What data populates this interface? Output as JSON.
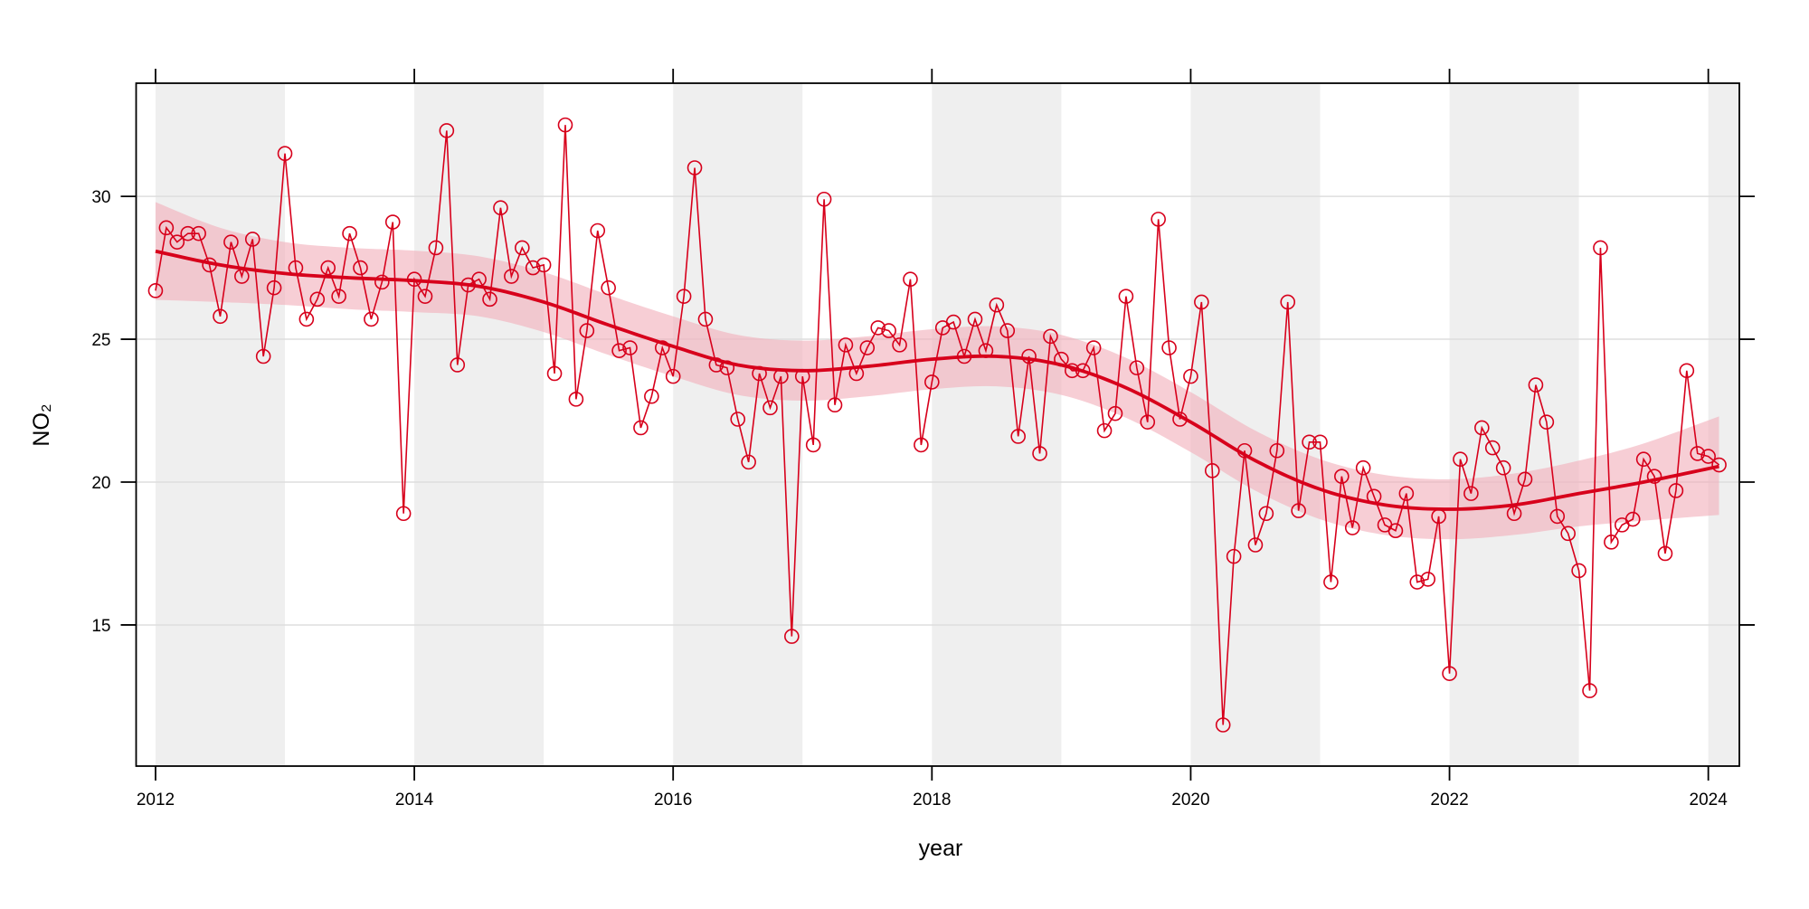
{
  "chart_data": {
    "type": "line",
    "xlabel": "year",
    "ylabel": "NO₂",
    "xlim": [
      2011.85,
      2024.24
    ],
    "ylim": [
      10.06,
      33.96
    ],
    "x_ticks": [
      2012,
      2014,
      2016,
      2018,
      2020,
      2022,
      2024
    ],
    "y_ticks": [
      15,
      20,
      25,
      30
    ],
    "grid": "horizontal",
    "alternate_year_shading": true,
    "colors": {
      "series": "#d7001b",
      "band": "#f2aeb9",
      "shade": "#efefef",
      "grid": "#dedede"
    },
    "series": [
      {
        "frequency": "monthly",
        "start": "2012-01",
        "marker": "open-circle",
        "values": [
          26.7,
          28.9,
          28.4,
          28.7,
          28.7,
          27.6,
          25.8,
          28.4,
          27.2,
          28.5,
          24.4,
          26.8,
          31.5,
          27.5,
          25.7,
          26.4,
          27.5,
          26.5,
          28.7,
          27.5,
          25.7,
          27.0,
          29.1,
          18.9,
          27.1,
          26.5,
          28.2,
          32.3,
          24.1,
          26.9,
          27.1,
          26.4,
          29.6,
          27.2,
          28.2,
          27.5,
          27.6,
          23.8,
          32.5,
          22.9,
          25.3,
          28.8,
          26.8,
          24.6,
          24.7,
          21.9,
          23.0,
          24.7,
          23.7,
          26.5,
          31.0,
          25.7,
          24.1,
          24.0,
          22.2,
          20.7,
          23.8,
          22.6,
          23.7,
          14.6,
          23.7,
          21.3,
          29.9,
          22.7,
          24.8,
          23.8,
          24.7,
          25.4,
          25.3,
          24.8,
          27.1,
          21.3,
          23.5,
          25.4,
          25.6,
          24.4,
          25.7,
          24.6,
          26.2,
          25.3,
          21.6,
          24.4,
          21.0,
          25.1,
          24.3,
          23.9,
          23.9,
          24.7,
          21.8,
          22.4,
          26.5,
          24.0,
          22.1,
          29.2,
          24.7,
          22.2,
          23.7,
          26.3,
          20.4,
          11.5,
          17.4,
          21.1,
          17.8,
          18.9,
          21.1,
          26.3,
          19.0,
          21.4,
          21.4,
          16.5,
          20.2,
          18.4,
          20.5,
          19.5,
          18.5,
          18.3,
          19.6,
          16.5,
          16.6,
          18.8,
          13.3,
          20.8,
          19.6,
          21.9,
          21.2,
          20.5,
          18.9,
          20.1,
          23.4,
          22.1,
          18.8,
          18.2,
          16.9,
          12.7,
          28.2,
          17.9,
          18.5,
          18.7,
          20.8,
          20.2,
          17.5,
          19.7,
          23.9,
          21.0,
          20.9,
          20.6
        ]
      }
    ],
    "smooth_trend": {
      "x": [
        2012.0,
        2012.5,
        2013.0,
        2013.5,
        2014.0,
        2014.5,
        2015.0,
        2015.5,
        2016.0,
        2016.5,
        2017.0,
        2017.5,
        2018.0,
        2018.5,
        2019.0,
        2019.5,
        2020.0,
        2020.5,
        2021.0,
        2021.5,
        2022.0,
        2022.5,
        2023.0,
        2023.5,
        2024.083
      ],
      "fit": [
        28.08,
        27.6,
        27.3,
        27.15,
        27.05,
        26.85,
        26.3,
        25.5,
        24.75,
        24.1,
        23.9,
        24.05,
        24.3,
        24.4,
        24.1,
        23.3,
        22.1,
        20.75,
        19.75,
        19.2,
        19.05,
        19.2,
        19.6,
        20.0,
        20.55
      ],
      "lower": [
        26.38,
        26.3,
        26.2,
        26.05,
        25.95,
        25.8,
        25.25,
        24.45,
        23.7,
        23.05,
        22.85,
        23.0,
        23.25,
        23.35,
        23.05,
        22.25,
        21.05,
        19.7,
        18.7,
        18.15,
        18.0,
        18.15,
        18.45,
        18.65,
        18.85
      ],
      "upper": [
        29.8,
        28.9,
        28.4,
        28.2,
        28.1,
        27.9,
        27.35,
        26.55,
        25.8,
        25.15,
        24.95,
        25.1,
        25.35,
        25.45,
        25.15,
        24.35,
        23.15,
        21.8,
        20.8,
        20.25,
        20.1,
        20.3,
        20.75,
        21.35,
        22.3
      ]
    }
  }
}
